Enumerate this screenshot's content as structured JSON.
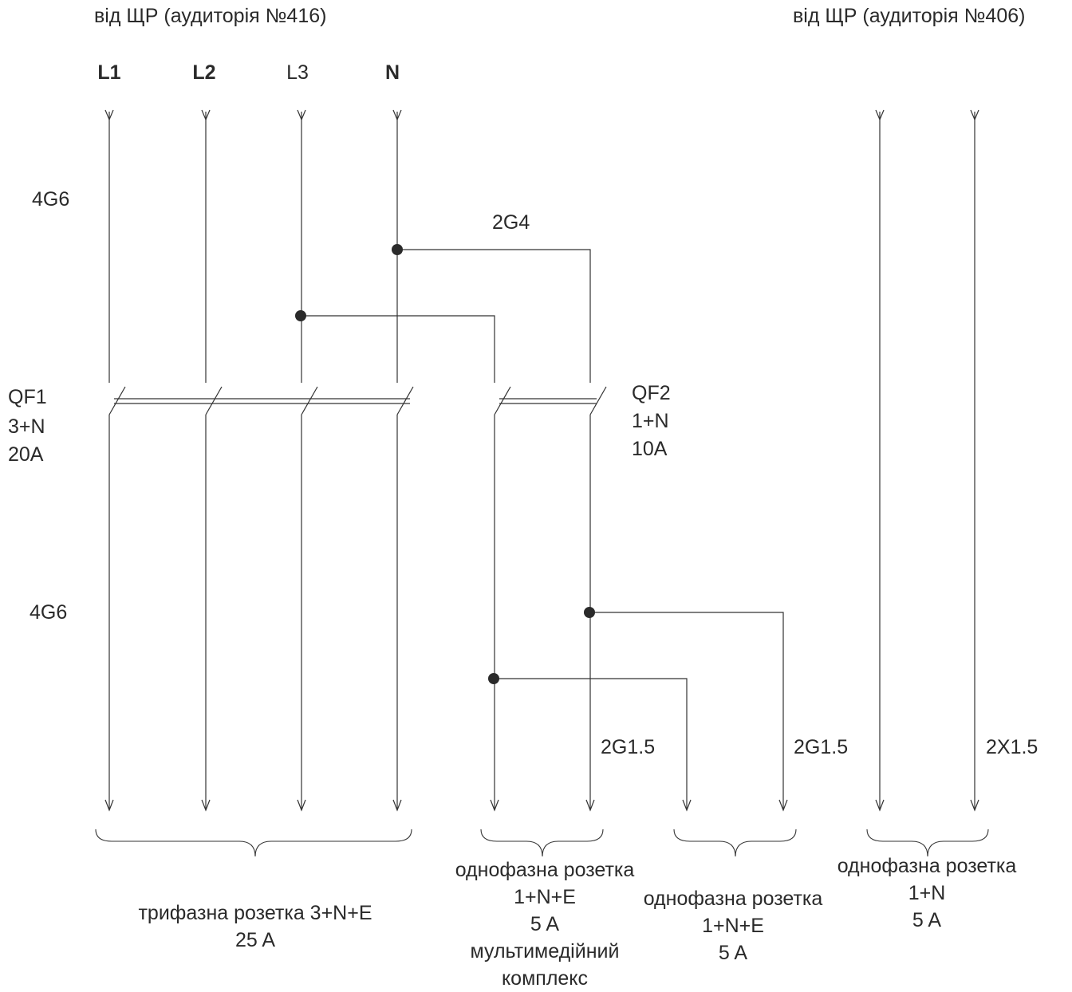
{
  "sources": {
    "left": "від ЩР (аудиторія №416)",
    "right": "від ЩР (аудиторія №406)"
  },
  "phases": [
    {
      "label": "L1",
      "bold": true
    },
    {
      "label": "L2",
      "bold": true
    },
    {
      "label": "L3",
      "bold": false
    },
    {
      "label": "N",
      "bold": true
    }
  ],
  "cables": {
    "feeder_top": "4G6",
    "branch_top": "2G4",
    "feeder_bottom": "4G6",
    "out_multimedia": "2G1.5",
    "out_socket": "2G1.5",
    "out_right": "2X1.5"
  },
  "breakers": {
    "qf1": {
      "name": "QF1",
      "poles": "3+N",
      "rating": "20A"
    },
    "qf2": {
      "name": "QF2",
      "poles": "1+N",
      "rating": "10A"
    }
  },
  "loads": {
    "three_phase": "трифазна розетка 3+N+E\n25 A",
    "multimedia": "однофазна розетка\n1+N+E\n5 A\nмультимедійний\nкомплекс",
    "single_socket": "однофазна розетка\n1+N+E\n5 A",
    "right_socket": "однофазна розетка\n1+N\n5 A"
  },
  "colors": {
    "line": "#333333",
    "text": "#2a2a2a"
  }
}
